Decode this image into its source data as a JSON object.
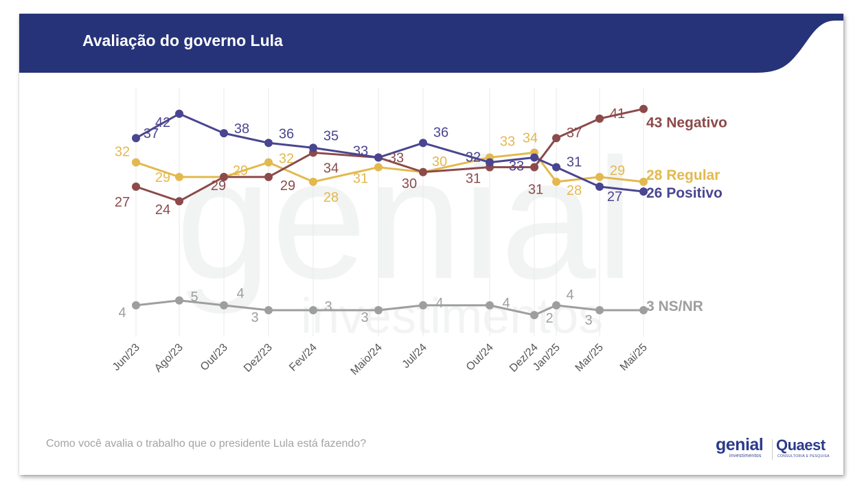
{
  "header": {
    "title": "Avaliação do governo Lula",
    "banner_color": "#263378"
  },
  "footer": {
    "question": "Como você avalia o trabalho que o presidente Lula está fazendo?",
    "logo_genial": "genial",
    "logo_genial_sub": "investimentos",
    "logo_quaest": "Quaest",
    "logo_quaest_sub": "CONSULTORIA E PESQUISA"
  },
  "watermark": {
    "text_main": "genial",
    "text_sub": "investimentos"
  },
  "chart_data": {
    "type": "line",
    "title": "Avaliação do governo Lula",
    "xlabel": "",
    "ylabel": "",
    "grid": "vertical",
    "legend": "end-of-line labels (right)",
    "categories": [
      "Jun/23",
      "Ago/23",
      "Out/23",
      "Dez/23",
      "Fev/24",
      "Maio/24",
      "Jul/24",
      "Out/24",
      "Dez/24",
      "Jan/25",
      "Mar/25",
      "Mai/25"
    ],
    "series": [
      {
        "name": "Negativo",
        "color": "#8c4a4a",
        "values": [
          27,
          24,
          29,
          29,
          34,
          33,
          30,
          31,
          31,
          37,
          41,
          43
        ],
        "end_label": "43 Negativo"
      },
      {
        "name": "Positivo",
        "color": "#4a4590",
        "values": [
          37,
          42,
          38,
          36,
          35,
          33,
          36,
          32,
          33,
          31,
          27,
          26
        ],
        "end_label": "26 Positivo"
      },
      {
        "name": "Regular",
        "color": "#e3b94e",
        "values": [
          32,
          29,
          29,
          32,
          28,
          31,
          30,
          33,
          34,
          28,
          29,
          28
        ],
        "end_label": "28 Regular"
      },
      {
        "name": "NS/NR",
        "color": "#9e9e9e",
        "values": [
          4,
          5,
          4,
          3,
          3,
          3,
          4,
          4,
          2,
          4,
          3,
          3
        ],
        "end_label": "3 NS/NR"
      }
    ]
  }
}
